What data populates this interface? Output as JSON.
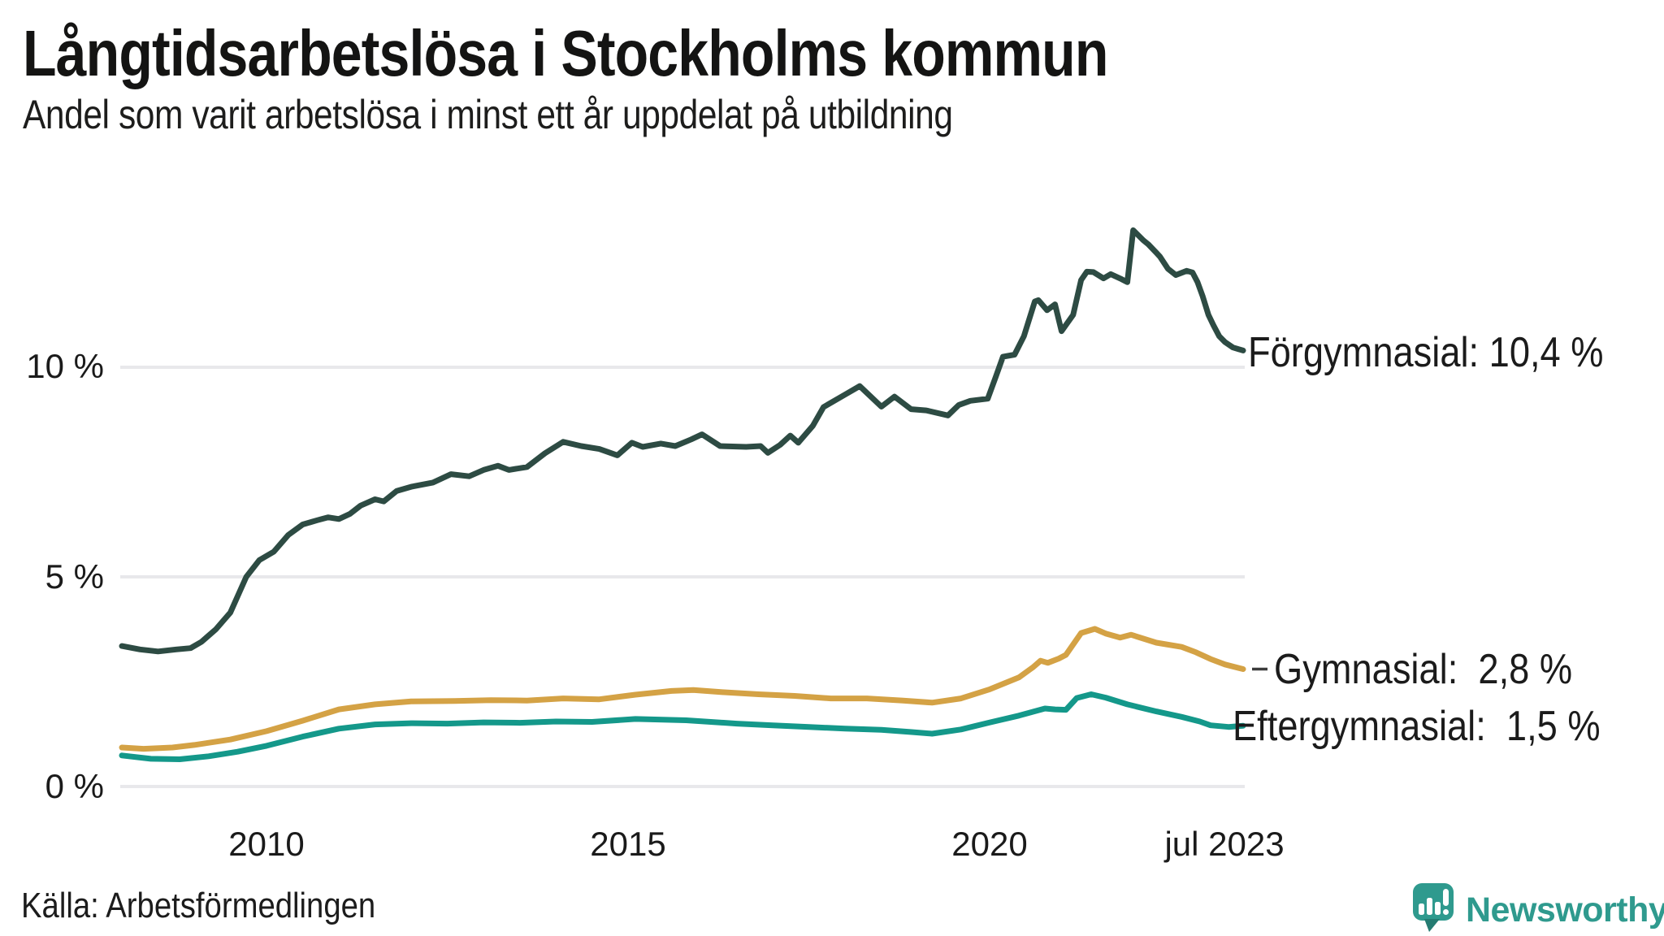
{
  "header": {
    "title": "Långtidsarbetslösa i Stockholms kommun",
    "subtitle": "Andel som varit arbetslösa i minst ett år uppdelat på utbildning"
  },
  "footer": {
    "source": "Källa: Arbetsförmedlingen",
    "brand": "Newsworthy"
  },
  "chart_data": {
    "type": "line",
    "title": "Långtidsarbetslösa i Stockholms kommun",
    "subtitle": "Andel som varit arbetslösa i minst ett år uppdelat på utbildning",
    "unit": "percent",
    "decimal_style": "swedish-comma",
    "grid": true,
    "grid_color": "#e8e8eb",
    "legend_position": "right-end-of-line",
    "x_axis": {
      "range": [
        2008,
        2023.5
      ],
      "ticks": [
        {
          "label": "2010",
          "value": 2010
        },
        {
          "label": "2015",
          "value": 2015
        },
        {
          "label": "2020",
          "value": 2020
        },
        {
          "label": "jul 2023",
          "value": 2023.5
        }
      ]
    },
    "y_axis": {
      "range": [
        0,
        13.7
      ],
      "ticks": [
        {
          "label": "0 %",
          "value": 0
        },
        {
          "label": "5 %",
          "value": 5
        },
        {
          "label": "10 %",
          "value": 10
        }
      ]
    },
    "series": [
      {
        "name": "Förgymnasial",
        "end_label": "Förgymnasial: 10,4 %",
        "latest_value": "10,4 %",
        "color": "#2d4b43",
        "points": [
          [
            2008.0,
            3.35
          ],
          [
            2008.25,
            3.27
          ],
          [
            2008.5,
            3.22
          ],
          [
            2008.75,
            3.27
          ],
          [
            2008.95,
            3.3
          ],
          [
            2009.1,
            3.45
          ],
          [
            2009.3,
            3.75
          ],
          [
            2009.5,
            4.15
          ],
          [
            2009.72,
            5.0
          ],
          [
            2009.9,
            5.4
          ],
          [
            2010.1,
            5.6
          ],
          [
            2010.3,
            6.0
          ],
          [
            2010.5,
            6.25
          ],
          [
            2010.7,
            6.35
          ],
          [
            2010.85,
            6.42
          ],
          [
            2011.0,
            6.38
          ],
          [
            2011.15,
            6.5
          ],
          [
            2011.3,
            6.7
          ],
          [
            2011.5,
            6.85
          ],
          [
            2011.62,
            6.8
          ],
          [
            2011.8,
            7.05
          ],
          [
            2012.0,
            7.15
          ],
          [
            2012.3,
            7.25
          ],
          [
            2012.55,
            7.45
          ],
          [
            2012.8,
            7.4
          ],
          [
            2013.0,
            7.55
          ],
          [
            2013.2,
            7.65
          ],
          [
            2013.35,
            7.55
          ],
          [
            2013.6,
            7.62
          ],
          [
            2013.85,
            7.95
          ],
          [
            2014.1,
            8.22
          ],
          [
            2014.35,
            8.12
          ],
          [
            2014.6,
            8.05
          ],
          [
            2014.85,
            7.9
          ],
          [
            2015.05,
            8.2
          ],
          [
            2015.2,
            8.1
          ],
          [
            2015.45,
            8.18
          ],
          [
            2015.65,
            8.12
          ],
          [
            2015.87,
            8.28
          ],
          [
            2016.02,
            8.4
          ],
          [
            2016.27,
            8.12
          ],
          [
            2016.63,
            8.1
          ],
          [
            2016.83,
            8.12
          ],
          [
            2016.93,
            7.96
          ],
          [
            2017.1,
            8.15
          ],
          [
            2017.24,
            8.37
          ],
          [
            2017.35,
            8.2
          ],
          [
            2017.55,
            8.6
          ],
          [
            2017.7,
            9.05
          ],
          [
            2018.0,
            9.35
          ],
          [
            2018.2,
            9.55
          ],
          [
            2018.5,
            9.06
          ],
          [
            2018.68,
            9.3
          ],
          [
            2018.91,
            9.0
          ],
          [
            2019.12,
            8.97
          ],
          [
            2019.42,
            8.85
          ],
          [
            2019.57,
            9.1
          ],
          [
            2019.73,
            9.2
          ],
          [
            2019.97,
            9.25
          ],
          [
            2020.08,
            9.77
          ],
          [
            2020.18,
            10.25
          ],
          [
            2020.34,
            10.3
          ],
          [
            2020.47,
            10.74
          ],
          [
            2020.62,
            11.57
          ],
          [
            2020.67,
            11.6
          ],
          [
            2020.79,
            11.36
          ],
          [
            2020.9,
            11.5
          ],
          [
            2020.99,
            10.86
          ],
          [
            2021.15,
            11.25
          ],
          [
            2021.26,
            12.08
          ],
          [
            2021.34,
            12.28
          ],
          [
            2021.43,
            12.27
          ],
          [
            2021.57,
            12.12
          ],
          [
            2021.67,
            12.22
          ],
          [
            2021.82,
            12.1
          ],
          [
            2021.9,
            12.03
          ],
          [
            2021.98,
            13.27
          ],
          [
            2022.12,
            13.03
          ],
          [
            2022.19,
            12.93
          ],
          [
            2022.3,
            12.73
          ],
          [
            2022.35,
            12.64
          ],
          [
            2022.46,
            12.35
          ],
          [
            2022.57,
            12.2
          ],
          [
            2022.72,
            12.3
          ],
          [
            2022.8,
            12.26
          ],
          [
            2022.87,
            12.03
          ],
          [
            2022.94,
            11.7
          ],
          [
            2023.02,
            11.25
          ],
          [
            2023.09,
            11.0
          ],
          [
            2023.17,
            10.74
          ],
          [
            2023.25,
            10.6
          ],
          [
            2023.36,
            10.47
          ],
          [
            2023.5,
            10.4
          ]
        ]
      },
      {
        "name": "Gymnasial",
        "end_label": "Gymnasial:  2,8 %",
        "latest_value": "2,8 %",
        "color": "#d4a245",
        "points": [
          [
            2008.0,
            0.93
          ],
          [
            2008.3,
            0.9
          ],
          [
            2008.7,
            0.93
          ],
          [
            2009.0,
            0.99
          ],
          [
            2009.5,
            1.12
          ],
          [
            2010.0,
            1.32
          ],
          [
            2010.5,
            1.57
          ],
          [
            2011.0,
            1.84
          ],
          [
            2011.5,
            1.96
          ],
          [
            2012.0,
            2.03
          ],
          [
            2012.6,
            2.04
          ],
          [
            2013.1,
            2.06
          ],
          [
            2013.6,
            2.05
          ],
          [
            2014.1,
            2.1
          ],
          [
            2014.6,
            2.08
          ],
          [
            2015.1,
            2.19
          ],
          [
            2015.6,
            2.28
          ],
          [
            2015.9,
            2.3
          ],
          [
            2016.3,
            2.25
          ],
          [
            2016.8,
            2.2
          ],
          [
            2017.3,
            2.16
          ],
          [
            2017.8,
            2.1
          ],
          [
            2018.3,
            2.1
          ],
          [
            2018.8,
            2.05
          ],
          [
            2019.2,
            2.0
          ],
          [
            2019.6,
            2.1
          ],
          [
            2020.0,
            2.32
          ],
          [
            2020.4,
            2.6
          ],
          [
            2020.6,
            2.85
          ],
          [
            2020.7,
            3.0
          ],
          [
            2020.8,
            2.95
          ],
          [
            2020.95,
            3.05
          ],
          [
            2021.05,
            3.14
          ],
          [
            2021.26,
            3.66
          ],
          [
            2021.45,
            3.76
          ],
          [
            2021.6,
            3.65
          ],
          [
            2021.8,
            3.55
          ],
          [
            2021.95,
            3.62
          ],
          [
            2022.3,
            3.43
          ],
          [
            2022.65,
            3.33
          ],
          [
            2022.85,
            3.2
          ],
          [
            2023.05,
            3.04
          ],
          [
            2023.25,
            2.91
          ],
          [
            2023.5,
            2.8
          ]
        ]
      },
      {
        "name": "Eftergymnasial",
        "end_label": "Eftergymnasial:  1,5 %",
        "latest_value": "1,5 %",
        "color": "#14988a",
        "points": [
          [
            2008.0,
            0.74
          ],
          [
            2008.4,
            0.66
          ],
          [
            2008.8,
            0.65
          ],
          [
            2009.2,
            0.72
          ],
          [
            2009.6,
            0.83
          ],
          [
            2010.0,
            0.97
          ],
          [
            2010.5,
            1.19
          ],
          [
            2011.0,
            1.38
          ],
          [
            2011.5,
            1.48
          ],
          [
            2012.0,
            1.51
          ],
          [
            2012.5,
            1.5
          ],
          [
            2013.0,
            1.53
          ],
          [
            2013.5,
            1.52
          ],
          [
            2014.0,
            1.55
          ],
          [
            2014.5,
            1.54
          ],
          [
            2015.1,
            1.61
          ],
          [
            2015.8,
            1.58
          ],
          [
            2016.5,
            1.5
          ],
          [
            2017.0,
            1.46
          ],
          [
            2017.5,
            1.42
          ],
          [
            2018.0,
            1.38
          ],
          [
            2018.5,
            1.35
          ],
          [
            2018.9,
            1.3
          ],
          [
            2019.2,
            1.26
          ],
          [
            2019.6,
            1.36
          ],
          [
            2020.0,
            1.53
          ],
          [
            2020.4,
            1.69
          ],
          [
            2020.76,
            1.86
          ],
          [
            2020.9,
            1.84
          ],
          [
            2021.05,
            1.83
          ],
          [
            2021.2,
            2.11
          ],
          [
            2021.4,
            2.2
          ],
          [
            2021.6,
            2.12
          ],
          [
            2021.9,
            1.96
          ],
          [
            2022.3,
            1.79
          ],
          [
            2022.65,
            1.66
          ],
          [
            2022.9,
            1.55
          ],
          [
            2023.05,
            1.46
          ],
          [
            2023.3,
            1.42
          ],
          [
            2023.5,
            1.45
          ]
        ]
      }
    ]
  }
}
